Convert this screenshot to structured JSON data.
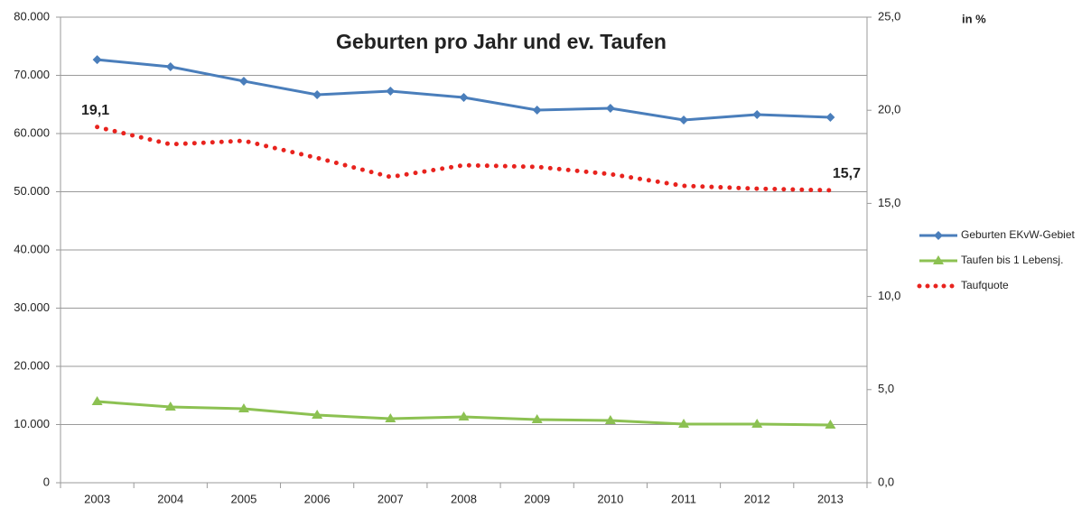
{
  "chart_data": {
    "type": "line",
    "title": "Geburten pro Jahr und ev. Taufen",
    "y2_unit_label": "in %",
    "categories": [
      "2003",
      "2004",
      "2005",
      "2006",
      "2007",
      "2008",
      "2009",
      "2010",
      "2011",
      "2012",
      "2013"
    ],
    "ylim": [
      0,
      80000
    ],
    "yticks": [
      0,
      {
        "value": 10000,
        "label": "10.000"
      },
      {
        "value": 20000,
        "label": "20.000"
      },
      {
        "value": 30000,
        "label": "30.000"
      },
      {
        "value": 40000,
        "label": "40.000"
      },
      {
        "value": 50000,
        "label": "50.000"
      },
      {
        "value": 60000,
        "label": "60.000"
      },
      {
        "value": 70000,
        "label": "70.000"
      },
      {
        "value": 80000,
        "label": "80.000"
      }
    ],
    "y2lim": [
      0,
      25
    ],
    "y2ticks": [
      {
        "value": 0,
        "label": "0,0"
      },
      {
        "value": 5,
        "label": "5,0"
      },
      {
        "value": 10,
        "label": "10,0"
      },
      {
        "value": 15,
        "label": "15,0"
      },
      {
        "value": 20,
        "label": "20,0"
      },
      {
        "value": 25,
        "label": "25,0"
      }
    ],
    "grid": true,
    "legend": "right",
    "series": [
      {
        "name": "Geburten EKvW-Gebiet",
        "color": "#4a7ebb",
        "marker": "diamond",
        "style": "solid",
        "values": [
          72700,
          71470,
          69000,
          66670,
          67290,
          66200,
          64030,
          64340,
          62330,
          63260,
          62790
        ]
      },
      {
        "name": "Taufen bis 1 Lebensj.",
        "color": "#8cc152",
        "marker": "triangle",
        "style": "solid",
        "values": [
          13950,
          13020,
          12710,
          11630,
          11000,
          11320,
          10850,
          10700,
          10080,
          10080,
          9920
        ]
      },
      {
        "name": "Taufquote",
        "color": "#e8231e",
        "style": "dotted",
        "axis": "y2",
        "values": [
          19.1,
          18.17,
          18.36,
          17.44,
          16.42,
          17.05,
          16.96,
          16.57,
          15.94,
          15.79,
          15.7
        ],
        "value_labels": [
          "19,1",
          null,
          null,
          null,
          null,
          null,
          null,
          null,
          null,
          null,
          "15,7"
        ]
      }
    ]
  }
}
